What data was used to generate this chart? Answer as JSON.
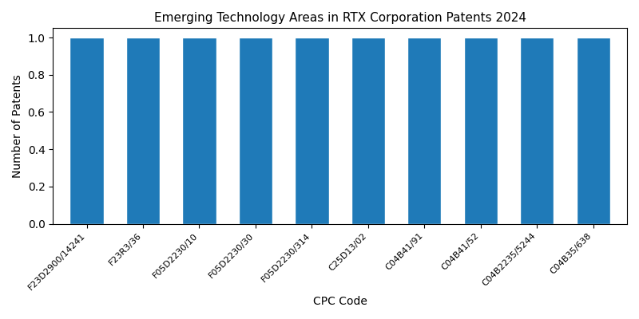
{
  "title": "Emerging Technology Areas in RTX Corporation Patents 2024",
  "xlabel": "CPC Code",
  "ylabel": "Number of Patents",
  "categories": [
    "F23D2900/14241",
    "F23R3/36",
    "F05D2230/10",
    "F05D2230/30",
    "F05D2230/314",
    "C25D13/02",
    "C04B41/91",
    "C04B41/52",
    "C04B2235/5244",
    "C04B35/638"
  ],
  "values": [
    1,
    1,
    1,
    1,
    1,
    1,
    1,
    1,
    1,
    1
  ],
  "bar_color": "#1f7ab8",
  "ylim": [
    0,
    1.05
  ],
  "yticks": [
    0.0,
    0.2,
    0.4,
    0.6,
    0.8,
    1.0
  ],
  "figsize": [
    8.0,
    4.0
  ],
  "dpi": 100,
  "title_fontsize": 11,
  "xlabel_fontsize": 10,
  "ylabel_fontsize": 10,
  "tick_rotation": 45,
  "bar_width": 0.6,
  "bar_edgecolor": "white",
  "tick_fontsize": 8
}
